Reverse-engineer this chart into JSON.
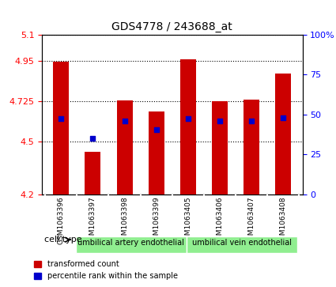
{
  "title": "GDS4778 / 243688_at",
  "samples": [
    "GSM1063396",
    "GSM1063397",
    "GSM1063398",
    "GSM1063399",
    "GSM1063405",
    "GSM1063406",
    "GSM1063407",
    "GSM1063408"
  ],
  "bar_values": [
    4.945,
    4.44,
    4.73,
    4.665,
    4.96,
    4.725,
    4.735,
    4.88
  ],
  "bar_base": 4.2,
  "percentile_values": [
    4.625,
    4.515,
    4.615,
    4.565,
    4.625,
    4.615,
    4.615,
    4.63
  ],
  "ylim_left": [
    4.2,
    5.1
  ],
  "yticks_left": [
    4.2,
    4.5,
    4.725,
    4.95,
    5.1
  ],
  "ytick_labels_left": [
    "4.2",
    "4.5",
    "4.725",
    "4.95",
    "5.1"
  ],
  "ylim_right": [
    0,
    100
  ],
  "yticks_right": [
    0,
    25,
    50,
    75,
    100
  ],
  "ytick_labels_right": [
    "0",
    "25",
    "50",
    "75",
    "100%"
  ],
  "bar_color": "#cc0000",
  "percentile_color": "#0000cc",
  "bar_width": 0.5,
  "cell_type_groups": [
    {
      "label": "umbilical artery endothelial",
      "samples": [
        "GSM1063396",
        "GSM1063397",
        "GSM1063398",
        "GSM1063399"
      ],
      "color": "#90ee90"
    },
    {
      "label": "umbilical vein endothelial",
      "samples": [
        "GSM1063405",
        "GSM1063406",
        "GSM1063407",
        "GSM1063408"
      ],
      "color": "#90ee90"
    }
  ],
  "grid_linestyle": "dotted",
  "background_color": "#ffffff",
  "label_red": "transformed count",
  "label_blue": "percentile rank within the sample"
}
